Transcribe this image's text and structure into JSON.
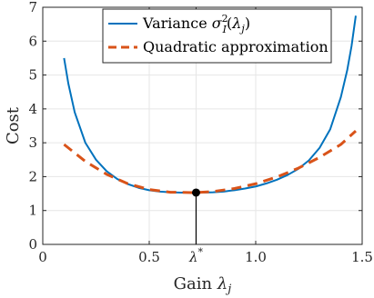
{
  "chart_data": {
    "type": "line",
    "xlabel": {
      "text": "Gain",
      "symbol": "λ",
      "sub": "j"
    },
    "ylabel": "Cost",
    "xlim": [
      0,
      1.5
    ],
    "ylim": [
      0,
      7
    ],
    "xticks": [
      {
        "value": 0,
        "label": "0"
      },
      {
        "value": 0.5,
        "label": "0.5"
      },
      {
        "value": 0.72,
        "label": "λ",
        "sup": "*"
      },
      {
        "value": 1.0,
        "label": "1.0"
      },
      {
        "value": 1.5,
        "label": "1.5"
      }
    ],
    "yticks": [
      0,
      1,
      2,
      3,
      4,
      5,
      6,
      7
    ],
    "grid": true,
    "legend_position": "top-right",
    "colors": {
      "variance": "#0072BD",
      "quadratic": "#D95319",
      "marker": "#000000"
    },
    "series": [
      {
        "name": "Variance",
        "legend": {
          "prefix": "Variance ",
          "sym": "σ",
          "sub": "I",
          "sup": "2",
          "arg": "λ",
          "argsub": "j"
        },
        "style": "solid",
        "x": [
          0.1,
          0.12,
          0.15,
          0.2,
          0.25,
          0.3,
          0.35,
          0.4,
          0.45,
          0.5,
          0.55,
          0.6,
          0.65,
          0.7,
          0.72,
          0.75,
          0.8,
          0.85,
          0.9,
          0.95,
          1.0,
          1.05,
          1.1,
          1.15,
          1.2,
          1.25,
          1.3,
          1.35,
          1.4,
          1.43,
          1.45,
          1.47
        ],
        "y": [
          5.5,
          4.75,
          3.9,
          3.0,
          2.5,
          2.16,
          1.93,
          1.78,
          1.67,
          1.6,
          1.56,
          1.54,
          1.53,
          1.53,
          1.53,
          1.53,
          1.54,
          1.56,
          1.6,
          1.65,
          1.71,
          1.8,
          1.91,
          2.05,
          2.23,
          2.48,
          2.85,
          3.4,
          4.35,
          5.15,
          5.85,
          6.75
        ]
      },
      {
        "name": "Quadratic approximation",
        "legend": {
          "prefix": "Quadratic approximation"
        },
        "style": "dashed",
        "x": [
          0.1,
          0.2,
          0.3,
          0.4,
          0.5,
          0.6,
          0.7,
          0.72,
          0.8,
          0.9,
          1.0,
          1.1,
          1.2,
          1.3,
          1.4,
          1.47
        ],
        "y": [
          2.95,
          2.45,
          2.07,
          1.79,
          1.62,
          1.54,
          1.53,
          1.53,
          1.56,
          1.65,
          1.79,
          1.99,
          2.25,
          2.57,
          2.95,
          3.35
        ]
      }
    ],
    "optimum": {
      "x": 0.72,
      "y": 1.53
    }
  }
}
